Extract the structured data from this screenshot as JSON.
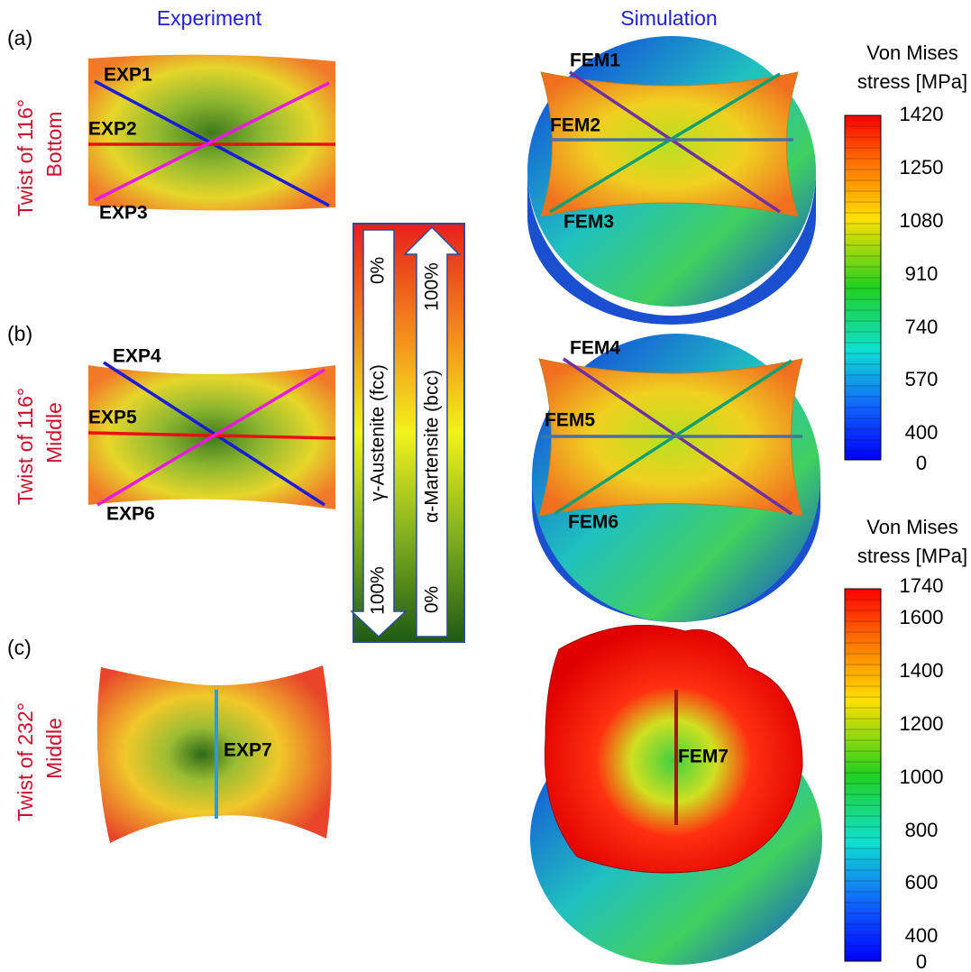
{
  "headers": {
    "experiment": "Experiment",
    "simulation": "Simulation"
  },
  "rows": [
    {
      "panel": "(a)",
      "label_line1": "Twist of 116°",
      "label_line2": "Bottom",
      "exp_lines": [
        "EXP1",
        "EXP2",
        "EXP3"
      ],
      "fem_lines": [
        "FEM1",
        "FEM2",
        "FEM3"
      ]
    },
    {
      "panel": "(b)",
      "label_line1": "Twist of 116°",
      "label_line2": "Middle",
      "exp_lines": [
        "EXP4",
        "EXP5",
        "EXP6"
      ],
      "fem_lines": [
        "FEM4",
        "FEM5",
        "FEM6"
      ]
    },
    {
      "panel": "(c)",
      "label_line1": "Twist of 232°",
      "label_line2": "Middle",
      "exp_lines": [
        "EXP7"
      ],
      "fem_lines": [
        "FEM7"
      ]
    }
  ],
  "phase_scale": {
    "austenite": {
      "label": "γ-Austenite (fcc)",
      "top": "0%",
      "bottom": "100%"
    },
    "martensite": {
      "label": "α-Martensite (bcc)",
      "top": "100%",
      "bottom": "0%"
    }
  },
  "colorbars": [
    {
      "title_line1": "Von Mises",
      "title_line2": "stress [MPa]",
      "ticks": [
        1420,
        1250,
        1080,
        910,
        740,
        570,
        400,
        0
      ]
    },
    {
      "title_line1": "Von Mises",
      "title_line2": "stress [MPa]",
      "ticks": [
        1740,
        1600,
        1400,
        1200,
        1000,
        800,
        600,
        400,
        0
      ]
    }
  ]
}
